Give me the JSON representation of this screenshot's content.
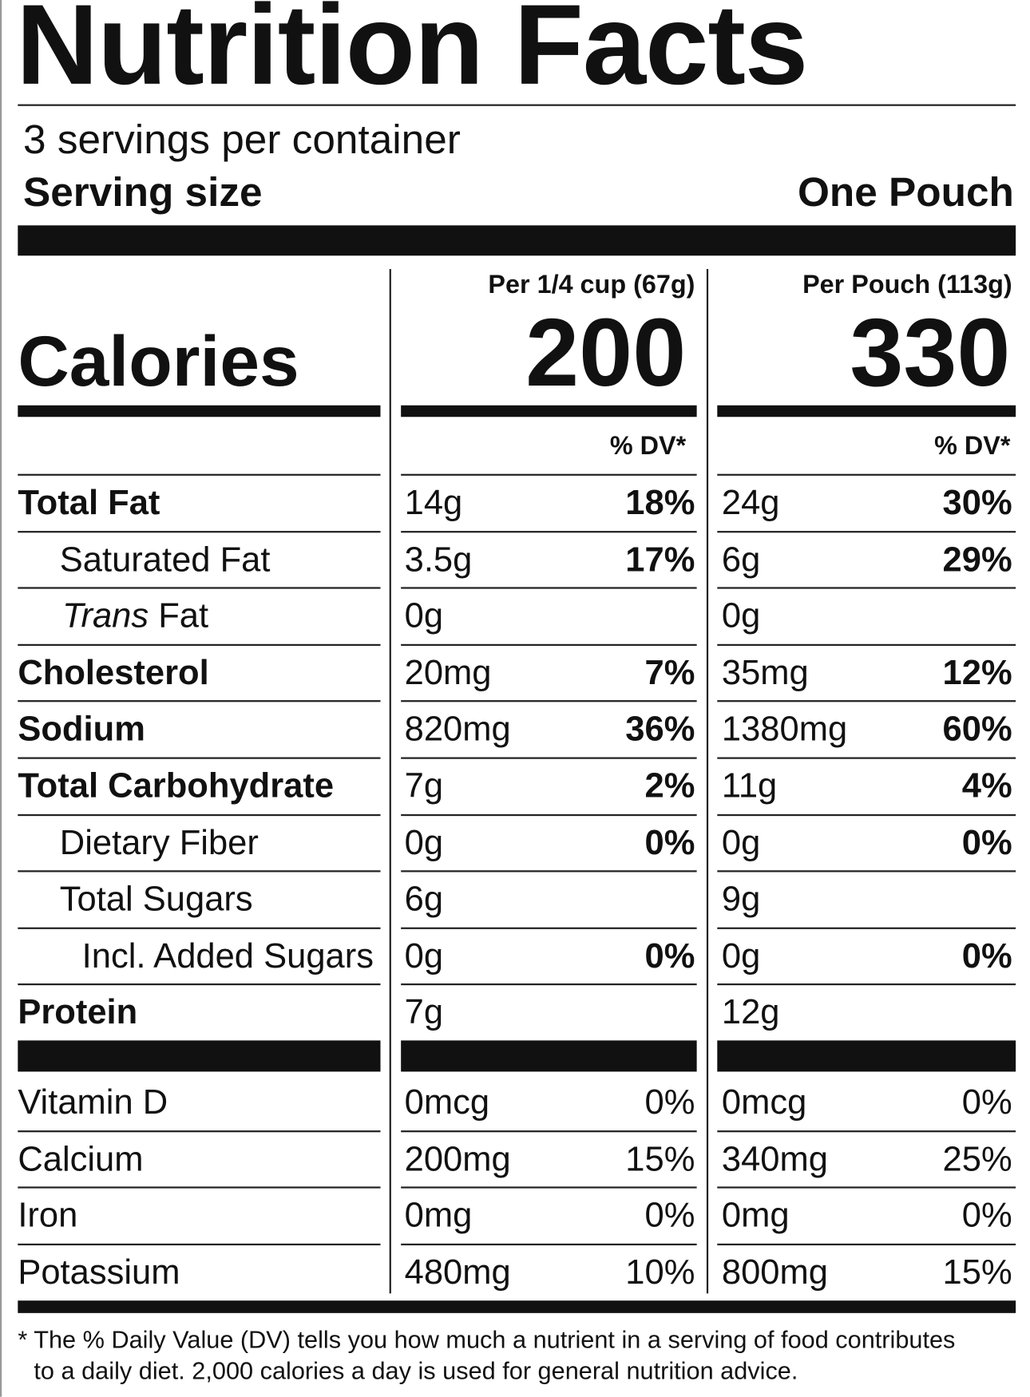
{
  "title": "Nutrition Facts",
  "servings_per_container": "3 servings per container",
  "serving_size_label": "Serving size",
  "serving_size_value": "One Pouch",
  "calories_label": "Calories",
  "columns": [
    {
      "header": "Per 1/4 cup (67g)",
      "calories": "200",
      "dv_header": "% DV*"
    },
    {
      "header": "Per Pouch (113g)",
      "calories": "330",
      "dv_header": "% DV*"
    }
  ],
  "nutrients": [
    {
      "label": "Total Fat",
      "bold": true,
      "indent": 0,
      "values": [
        [
          "14g",
          "18%"
        ],
        [
          "24g",
          "30%"
        ]
      ]
    },
    {
      "label": "Saturated Fat",
      "bold": false,
      "indent": 1,
      "values": [
        [
          "3.5g",
          "17%"
        ],
        [
          "6g",
          "29%"
        ]
      ]
    },
    {
      "label": "Trans",
      "label_suffix": " Fat",
      "italic_prefix": true,
      "bold": false,
      "indent": 1,
      "values": [
        [
          "0g",
          ""
        ],
        [
          "0g",
          ""
        ]
      ]
    },
    {
      "label": "Cholesterol",
      "bold": true,
      "indent": 0,
      "values": [
        [
          "20mg",
          "7%"
        ],
        [
          "35mg",
          "12%"
        ]
      ]
    },
    {
      "label": "Sodium",
      "bold": true,
      "indent": 0,
      "values": [
        [
          "820mg",
          "36%"
        ],
        [
          "1380mg",
          "60%"
        ]
      ]
    },
    {
      "label": "Total Carbohydrate",
      "bold": true,
      "indent": 0,
      "values": [
        [
          "7g",
          "2%"
        ],
        [
          "11g",
          "4%"
        ]
      ]
    },
    {
      "label": "Dietary Fiber",
      "bold": false,
      "indent": 1,
      "values": [
        [
          "0g",
          "0%"
        ],
        [
          "0g",
          "0%"
        ]
      ]
    },
    {
      "label": "Total Sugars",
      "bold": false,
      "indent": 1,
      "values": [
        [
          "6g",
          ""
        ],
        [
          "9g",
          ""
        ]
      ]
    },
    {
      "label": "Incl. Added Sugars",
      "bold": false,
      "indent": 2,
      "values": [
        [
          "0g",
          "0%"
        ],
        [
          "0g",
          "0%"
        ]
      ]
    },
    {
      "label": "Protein",
      "bold": true,
      "indent": 0,
      "values": [
        [
          "7g",
          ""
        ],
        [
          "12g",
          ""
        ]
      ]
    }
  ],
  "vitamins": [
    {
      "label": "Vitamin D",
      "values": [
        [
          "0mcg",
          "0%"
        ],
        [
          "0mcg",
          "0%"
        ]
      ]
    },
    {
      "label": "Calcium",
      "values": [
        [
          "200mg",
          "15%"
        ],
        [
          "340mg",
          "25%"
        ]
      ]
    },
    {
      "label": "Iron",
      "values": [
        [
          "0mg",
          "0%"
        ],
        [
          "0mg",
          "0%"
        ]
      ]
    },
    {
      "label": "Potassium",
      "values": [
        [
          "480mg",
          "10%"
        ],
        [
          "800mg",
          "15%"
        ]
      ]
    }
  ],
  "footnote_line1": "* The % Daily Value (DV) tells you how much a nutrient in a serving of food contributes",
  "footnote_line2": "to a daily diet. 2,000 calories a day is used for general nutrition advice."
}
